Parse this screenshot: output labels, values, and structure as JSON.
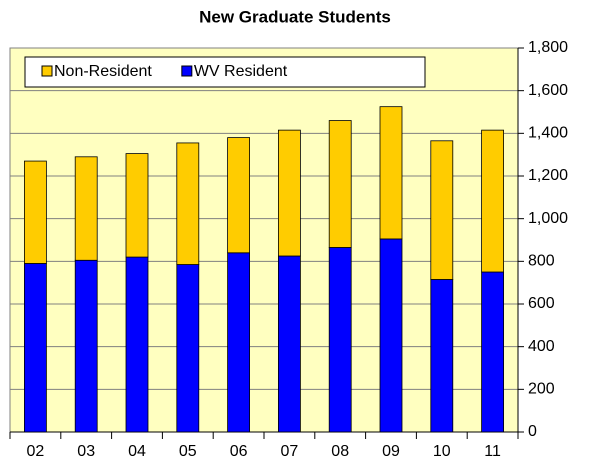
{
  "chart_data": {
    "type": "stacked_bar",
    "title": "New Graduate Students",
    "categories": [
      "02",
      "03",
      "04",
      "05",
      "06",
      "07",
      "08",
      "09",
      "10",
      "11"
    ],
    "series": [
      {
        "name": "WV Resident",
        "color": "#0000ff",
        "values": [
          790,
          805,
          820,
          785,
          840,
          825,
          865,
          905,
          715,
          750
        ]
      },
      {
        "name": "Non-Resident",
        "color": "#ffcc00",
        "values": [
          480,
          485,
          485,
          570,
          540,
          590,
          595,
          620,
          650,
          665
        ]
      }
    ],
    "ylim": [
      0,
      1800
    ],
    "yticks": [
      0,
      200,
      400,
      600,
      800,
      {
        "value": 1000,
        "label": "1,000"
      },
      {
        "value": 1200,
        "label": "1,200"
      },
      {
        "value": 1400,
        "label": "1,400"
      },
      {
        "value": 1600,
        "label": "1,600"
      },
      {
        "value": 1800,
        "label": "1,800"
      }
    ],
    "grid": true,
    "legend_position": "top"
  }
}
